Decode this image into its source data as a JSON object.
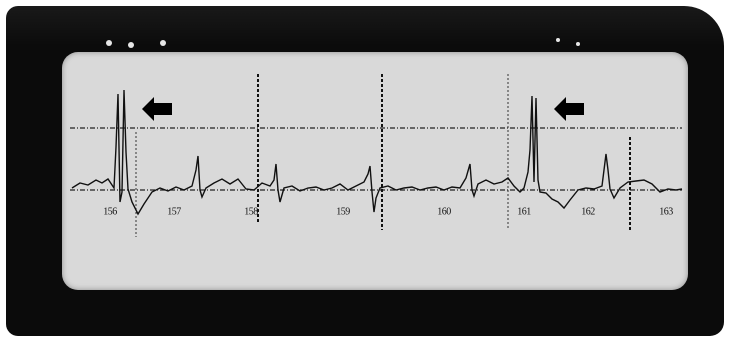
{
  "monitor": {
    "beat_labels": [
      "156",
      "157",
      "158",
      "159",
      "160",
      "161",
      "162",
      "163"
    ],
    "colors": {
      "bezel": "#0b0b0b",
      "screen": "#d9d9d9",
      "trace": "#111111",
      "grid": "#222222",
      "arrow": "#000000"
    },
    "icons": {
      "arrow_left": "arrow-left-icon",
      "arrow_right": "arrow-right-icon"
    }
  }
}
